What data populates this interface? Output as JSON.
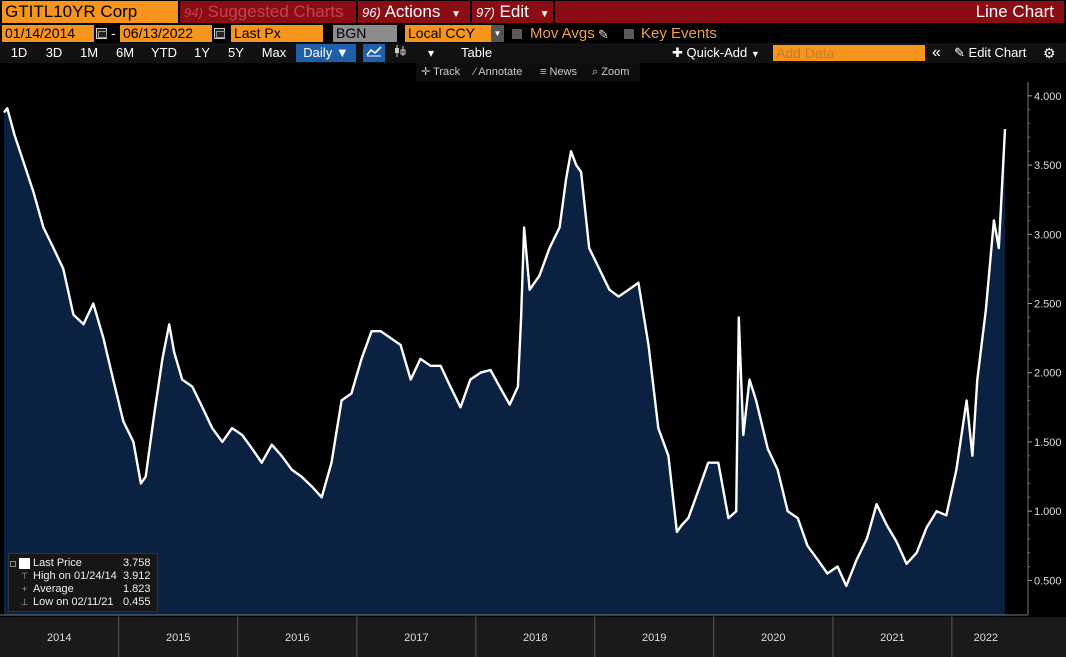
{
  "header": {
    "ticker": "GTITL10YR Corp",
    "menu_suggested_num": "94)",
    "menu_suggested": "Suggested Charts",
    "menu_actions_num": "96)",
    "menu_actions": "Actions",
    "menu_edit_num": "97)",
    "menu_edit": "Edit",
    "chart_type": "Line Chart"
  },
  "controls": {
    "start_date": "01/14/2014",
    "date_separator": "-",
    "end_date": "06/13/2022",
    "field": "Last Px",
    "source": "BGN",
    "currency": "Local CCY",
    "mov_avgs": "Mov Avgs",
    "key_events": "Key Events"
  },
  "periods": [
    "1D",
    "3D",
    "1M",
    "6M",
    "YTD",
    "1Y",
    "5Y",
    "Max"
  ],
  "frequency": "Daily",
  "toolbar": {
    "table": "Table",
    "quick_add": "Quick-Add",
    "add_data_placeholder": "Add Data",
    "collapse": "«",
    "edit_chart": "Edit Chart",
    "track": "Track",
    "annotate": "Annotate",
    "news": "News",
    "zoom": "Zoom"
  },
  "legend": {
    "last_price_label": "Last Price",
    "last_price_value": "3.758",
    "high_label": "High on 01/24/14",
    "high_value": "3.912",
    "average_label": "Average",
    "average_value": "1.823",
    "low_label": "Low on 02/11/21",
    "low_value": "0.455"
  },
  "colors": {
    "accent_orange": "#f7941d",
    "menu_red": "#8b0d14",
    "active_blue": "#1f5ea8",
    "area_fill": "#0b2141",
    "line": "#ffffff"
  },
  "chart_data": {
    "type": "area",
    "title": "",
    "xlabel": "",
    "ylabel": "",
    "ylim": [
      0.25,
      4.1
    ],
    "yticks": [
      "0.500",
      "1.000",
      "1.500",
      "2.000",
      "2.500",
      "3.000",
      "3.500",
      "4.000"
    ],
    "ytick_values": [
      0.5,
      1.0,
      1.5,
      2.0,
      2.5,
      3.0,
      3.5,
      4.0
    ],
    "year_labels": [
      "2014",
      "2015",
      "2016",
      "2017",
      "2018",
      "2019",
      "2020",
      "2021",
      "2022"
    ],
    "year_starts": [
      "2014-01-01",
      "2015-01-01",
      "2016-01-01",
      "2017-01-01",
      "2018-01-01",
      "2019-01-01",
      "2020-01-01",
      "2021-01-01",
      "2022-01-01"
    ],
    "x_range": [
      "2014-01-14",
      "2022-06-13"
    ],
    "grid": false,
    "series": [
      {
        "name": "Last Price",
        "points": [
          [
            "2014-01-14",
            3.88
          ],
          [
            "2014-01-24",
            3.91
          ],
          [
            "2014-02-15",
            3.72
          ],
          [
            "2014-03-15",
            3.52
          ],
          [
            "2014-04-15",
            3.3
          ],
          [
            "2014-05-15",
            3.05
          ],
          [
            "2014-06-15",
            2.9
          ],
          [
            "2014-07-15",
            2.75
          ],
          [
            "2014-08-15",
            2.42
          ],
          [
            "2014-09-15",
            2.35
          ],
          [
            "2014-10-15",
            2.5
          ],
          [
            "2014-11-15",
            2.25
          ],
          [
            "2014-12-15",
            1.95
          ],
          [
            "2015-01-15",
            1.65
          ],
          [
            "2015-02-15",
            1.5
          ],
          [
            "2015-03-10",
            1.2
          ],
          [
            "2015-03-25",
            1.25
          ],
          [
            "2015-04-20",
            1.7
          ],
          [
            "2015-05-15",
            2.1
          ],
          [
            "2015-06-05",
            2.35
          ],
          [
            "2015-06-20",
            2.15
          ],
          [
            "2015-07-15",
            1.95
          ],
          [
            "2015-08-15",
            1.9
          ],
          [
            "2015-09-15",
            1.75
          ],
          [
            "2015-10-15",
            1.6
          ],
          [
            "2015-11-15",
            1.5
          ],
          [
            "2015-12-15",
            1.6
          ],
          [
            "2016-01-15",
            1.55
          ],
          [
            "2016-02-15",
            1.45
          ],
          [
            "2016-03-15",
            1.35
          ],
          [
            "2016-04-15",
            1.48
          ],
          [
            "2016-05-15",
            1.4
          ],
          [
            "2016-06-15",
            1.3
          ],
          [
            "2016-07-15",
            1.25
          ],
          [
            "2016-08-15",
            1.18
          ],
          [
            "2016-09-15",
            1.1
          ],
          [
            "2016-10-15",
            1.35
          ],
          [
            "2016-11-15",
            1.8
          ],
          [
            "2016-12-15",
            1.85
          ],
          [
            "2017-01-15",
            2.1
          ],
          [
            "2017-02-15",
            2.3
          ],
          [
            "2017-03-15",
            2.3
          ],
          [
            "2017-04-15",
            2.25
          ],
          [
            "2017-05-15",
            2.2
          ],
          [
            "2017-06-15",
            1.95
          ],
          [
            "2017-07-15",
            2.1
          ],
          [
            "2017-08-15",
            2.05
          ],
          [
            "2017-09-15",
            2.05
          ],
          [
            "2017-10-15",
            1.9
          ],
          [
            "2017-11-15",
            1.75
          ],
          [
            "2017-12-15",
            1.95
          ],
          [
            "2018-01-15",
            2.0
          ],
          [
            "2018-02-15",
            2.02
          ],
          [
            "2018-03-15",
            1.9
          ],
          [
            "2018-04-15",
            1.77
          ],
          [
            "2018-05-10",
            1.9
          ],
          [
            "2018-05-20",
            2.4
          ],
          [
            "2018-05-29",
            3.05
          ],
          [
            "2018-06-15",
            2.6
          ],
          [
            "2018-07-15",
            2.7
          ],
          [
            "2018-08-15",
            2.9
          ],
          [
            "2018-09-15",
            3.05
          ],
          [
            "2018-10-05",
            3.4
          ],
          [
            "2018-10-20",
            3.6
          ],
          [
            "2018-11-05",
            3.5
          ],
          [
            "2018-11-20",
            3.45
          ],
          [
            "2018-12-15",
            2.9
          ],
          [
            "2019-01-15",
            2.75
          ],
          [
            "2019-02-15",
            2.6
          ],
          [
            "2019-03-15",
            2.55
          ],
          [
            "2019-04-15",
            2.6
          ],
          [
            "2019-05-15",
            2.65
          ],
          [
            "2019-06-15",
            2.2
          ],
          [
            "2019-07-15",
            1.6
          ],
          [
            "2019-08-15",
            1.4
          ],
          [
            "2019-09-10",
            0.85
          ],
          [
            "2019-09-25",
            0.9
          ],
          [
            "2019-10-15",
            0.95
          ],
          [
            "2019-11-15",
            1.15
          ],
          [
            "2019-12-15",
            1.35
          ],
          [
            "2020-01-15",
            1.35
          ],
          [
            "2020-02-15",
            0.95
          ],
          [
            "2020-03-10",
            1.0
          ],
          [
            "2020-03-18",
            2.4
          ],
          [
            "2020-04-01",
            1.55
          ],
          [
            "2020-04-20",
            1.95
          ],
          [
            "2020-05-10",
            1.8
          ],
          [
            "2020-06-15",
            1.45
          ],
          [
            "2020-07-15",
            1.3
          ],
          [
            "2020-08-15",
            1.0
          ],
          [
            "2020-09-15",
            0.95
          ],
          [
            "2020-10-15",
            0.75
          ],
          [
            "2020-11-15",
            0.65
          ],
          [
            "2020-12-15",
            0.55
          ],
          [
            "2021-01-15",
            0.6
          ],
          [
            "2021-02-11",
            0.46
          ],
          [
            "2021-03-15",
            0.65
          ],
          [
            "2021-04-15",
            0.8
          ],
          [
            "2021-05-15",
            1.05
          ],
          [
            "2021-06-15",
            0.9
          ],
          [
            "2021-07-15",
            0.78
          ],
          [
            "2021-08-15",
            0.62
          ],
          [
            "2021-09-15",
            0.7
          ],
          [
            "2021-10-15",
            0.88
          ],
          [
            "2021-11-15",
            1.0
          ],
          [
            "2021-12-15",
            0.97
          ],
          [
            "2022-01-15",
            1.3
          ],
          [
            "2022-02-15",
            1.8
          ],
          [
            "2022-03-05",
            1.4
          ],
          [
            "2022-03-20",
            1.95
          ],
          [
            "2022-04-15",
            2.45
          ],
          [
            "2022-05-10",
            3.1
          ],
          [
            "2022-05-25",
            2.9
          ],
          [
            "2022-06-05",
            3.4
          ],
          [
            "2022-06-13",
            3.76
          ]
        ]
      }
    ]
  }
}
